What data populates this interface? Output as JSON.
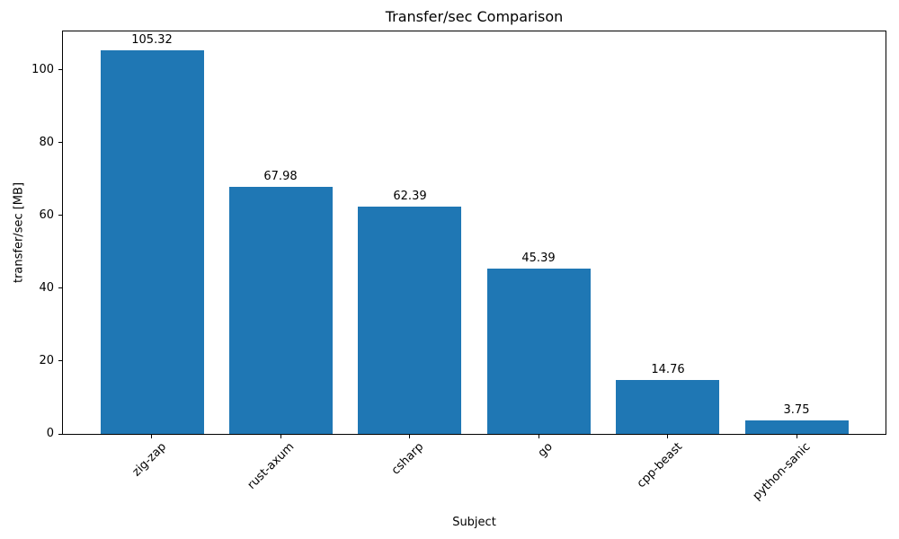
{
  "chart_data": {
    "type": "bar",
    "title": "Transfer/sec Comparison",
    "xlabel": "Subject",
    "ylabel": "transfer/sec [MB]",
    "categories": [
      "zig-zap",
      "rust-axum",
      "csharp",
      "go",
      "cpp-beast",
      "python-sanic"
    ],
    "values": [
      105.32,
      67.98,
      62.39,
      45.39,
      14.76,
      3.75
    ],
    "value_labels": [
      "105.32",
      "67.98",
      "62.39",
      "45.39",
      "14.76",
      "3.75"
    ],
    "yticks": [
      0,
      20,
      40,
      60,
      80,
      100
    ],
    "ylim": [
      0,
      110.59
    ],
    "grid": false,
    "legend": null,
    "colors": {
      "bar": "#1f77b4",
      "text": "#000000",
      "spine": "#000000",
      "background": "#ffffff"
    }
  }
}
